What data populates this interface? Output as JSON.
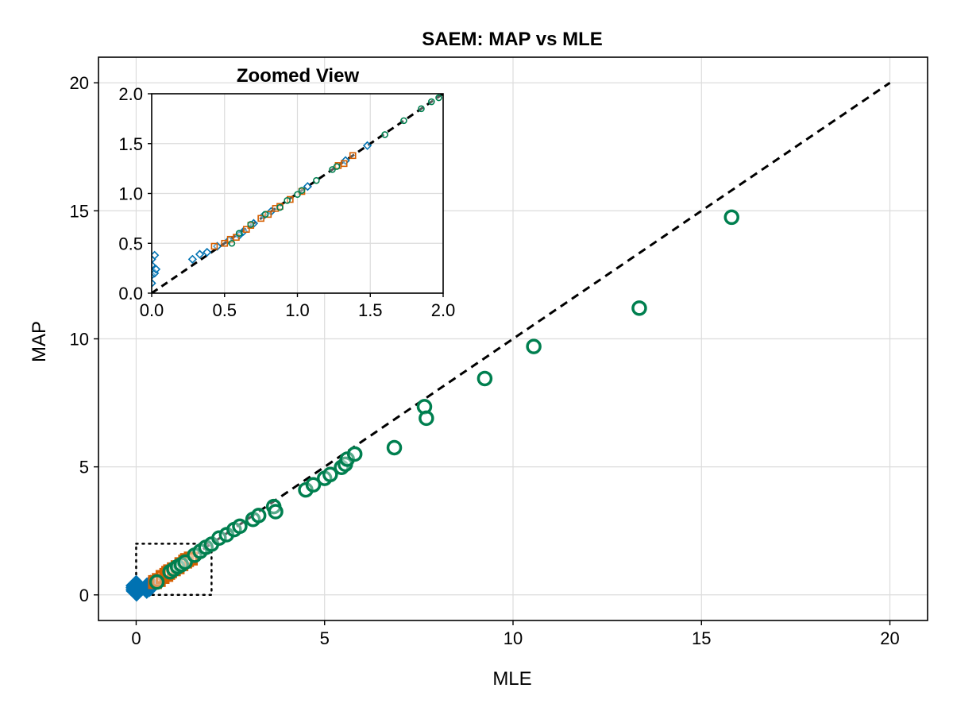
{
  "chart_data": [
    {
      "id": "main",
      "type": "scatter",
      "title": "SAEM: MAP vs MLE",
      "xlabel": "MLE",
      "ylabel": "MAP",
      "xlim": [
        -1,
        21
      ],
      "ylim": [
        -1,
        21
      ],
      "xticks": [
        0,
        5,
        10,
        15,
        20
      ],
      "yticks": [
        0,
        5,
        10,
        15,
        20
      ],
      "xtick_labels": [
        "0",
        "5",
        "10",
        "15",
        "20"
      ],
      "ytick_labels": [
        "0",
        "5",
        "10",
        "15",
        "20"
      ],
      "grid": true,
      "reference_line": {
        "style": "dashed",
        "color": "#000000",
        "from": [
          0,
          0
        ],
        "to": [
          20,
          20
        ]
      },
      "zoom_box": {
        "style": "dotted",
        "color": "#000000",
        "x": [
          0,
          2
        ],
        "y": [
          0,
          2
        ]
      },
      "series": [
        {
          "marker": "diamond",
          "color": "#0072b2",
          "fill": "#0072b2",
          "points": [
            [
              0.0,
              0.2
            ],
            [
              0.0,
              0.28
            ],
            [
              0.0,
              0.36
            ],
            [
              0.01,
              0.15
            ],
            [
              0.02,
              0.32
            ],
            [
              0.28,
              0.26
            ],
            [
              0.35,
              0.33
            ],
            [
              0.38,
              0.37
            ]
          ]
        },
        {
          "marker": "square",
          "color": "#d55e00",
          "fill": "none",
          "points": [
            [
              0.5,
              0.5
            ],
            [
              0.6,
              0.58
            ],
            [
              0.7,
              0.7
            ],
            [
              0.8,
              0.78
            ],
            [
              0.85,
              0.86
            ],
            [
              0.9,
              0.92
            ],
            [
              1.0,
              1.0
            ],
            [
              1.1,
              1.08
            ],
            [
              1.2,
              1.2
            ],
            [
              1.3,
              1.3
            ],
            [
              1.35,
              1.36
            ],
            [
              1.45,
              1.42
            ]
          ]
        },
        {
          "marker": "circle",
          "color": "#007f4f",
          "fill": "none",
          "points": [
            [
              0.55,
              0.5
            ],
            [
              0.9,
              0.9
            ],
            [
              1.0,
              1.0
            ],
            [
              1.1,
              1.1
            ],
            [
              1.2,
              1.18
            ],
            [
              1.3,
              1.28
            ],
            [
              1.55,
              1.55
            ],
            [
              1.7,
              1.7
            ],
            [
              1.85,
              1.86
            ],
            [
              2.0,
              1.98
            ],
            [
              2.2,
              2.22
            ],
            [
              2.4,
              2.35
            ],
            [
              2.6,
              2.55
            ],
            [
              2.75,
              2.68
            ],
            [
              3.1,
              2.95
            ],
            [
              3.25,
              3.1
            ],
            [
              3.65,
              3.45
            ],
            [
              3.7,
              3.25
            ],
            [
              4.5,
              4.1
            ],
            [
              4.7,
              4.3
            ],
            [
              5.0,
              4.55
            ],
            [
              5.15,
              4.7
            ],
            [
              5.45,
              4.98
            ],
            [
              5.55,
              5.1
            ],
            [
              5.6,
              5.3
            ],
            [
              5.8,
              5.5
            ],
            [
              6.85,
              5.75
            ],
            [
              7.65,
              7.35
            ],
            [
              7.7,
              6.9
            ],
            [
              9.25,
              8.45
            ],
            [
              10.55,
              9.7
            ],
            [
              13.35,
              11.2
            ],
            [
              15.8,
              14.75
            ]
          ]
        }
      ]
    },
    {
      "id": "inset",
      "type": "scatter",
      "title": "Zoomed View",
      "xlim": [
        0,
        2
      ],
      "ylim": [
        0,
        2
      ],
      "xticks": [
        0,
        0.5,
        1,
        1.5,
        2
      ],
      "yticks": [
        0,
        0.5,
        1,
        1.5,
        2
      ],
      "xtick_labels": [
        "0.0",
        "0.5",
        "1.0",
        "1.5",
        "2.0"
      ],
      "ytick_labels": [
        "0.0",
        "0.5",
        "1.0",
        "1.5",
        "2.0"
      ],
      "grid": true,
      "reference_line": {
        "style": "dashed",
        "color": "#000000",
        "from": [
          0,
          0
        ],
        "to": [
          2,
          2
        ]
      },
      "series": [
        {
          "marker": "diamond",
          "color": "#0072b2",
          "fill": "none",
          "points": [
            [
              0.0,
              0.1
            ],
            [
              0.0,
              0.18
            ],
            [
              0.0,
              0.28
            ],
            [
              0.0,
              0.34
            ],
            [
              0.02,
              0.38
            ],
            [
              0.02,
              0.2
            ],
            [
              0.03,
              0.24
            ],
            [
              0.28,
              0.34
            ],
            [
              0.33,
              0.39
            ],
            [
              0.38,
              0.41
            ],
            [
              0.45,
              0.47
            ],
            [
              0.53,
              0.53
            ],
            [
              0.6,
              0.58
            ],
            [
              0.63,
              0.62
            ],
            [
              0.7,
              0.7
            ],
            [
              0.77,
              0.78
            ],
            [
              0.82,
              0.82
            ],
            [
              1.07,
              1.07
            ],
            [
              1.33,
              1.33
            ],
            [
              1.48,
              1.48
            ]
          ]
        },
        {
          "marker": "square",
          "color": "#d55e00",
          "fill": "none",
          "points": [
            [
              0.43,
              0.47
            ],
            [
              0.5,
              0.5
            ],
            [
              0.54,
              0.54
            ],
            [
              0.58,
              0.56
            ],
            [
              0.65,
              0.64
            ],
            [
              0.68,
              0.68
            ],
            [
              0.75,
              0.75
            ],
            [
              0.8,
              0.79
            ],
            [
              0.85,
              0.85
            ],
            [
              0.88,
              0.87
            ],
            [
              0.95,
              0.94
            ],
            [
              1.03,
              1.02
            ],
            [
              1.28,
              1.28
            ],
            [
              1.32,
              1.3
            ],
            [
              1.38,
              1.38
            ]
          ]
        },
        {
          "marker": "circle",
          "color": "#007f4f",
          "fill": "none",
          "points": [
            [
              0.55,
              0.5
            ],
            [
              0.6,
              0.6
            ],
            [
              0.68,
              0.69
            ],
            [
              0.78,
              0.79
            ],
            [
              0.88,
              0.86
            ],
            [
              0.93,
              0.93
            ],
            [
              1.0,
              0.99
            ],
            [
              1.03,
              1.03
            ],
            [
              1.13,
              1.13
            ],
            [
              1.24,
              1.24
            ],
            [
              1.27,
              1.27
            ],
            [
              1.6,
              1.59
            ],
            [
              1.73,
              1.73
            ],
            [
              1.85,
              1.85
            ],
            [
              1.92,
              1.92
            ],
            [
              1.97,
              1.96
            ]
          ]
        }
      ]
    }
  ]
}
